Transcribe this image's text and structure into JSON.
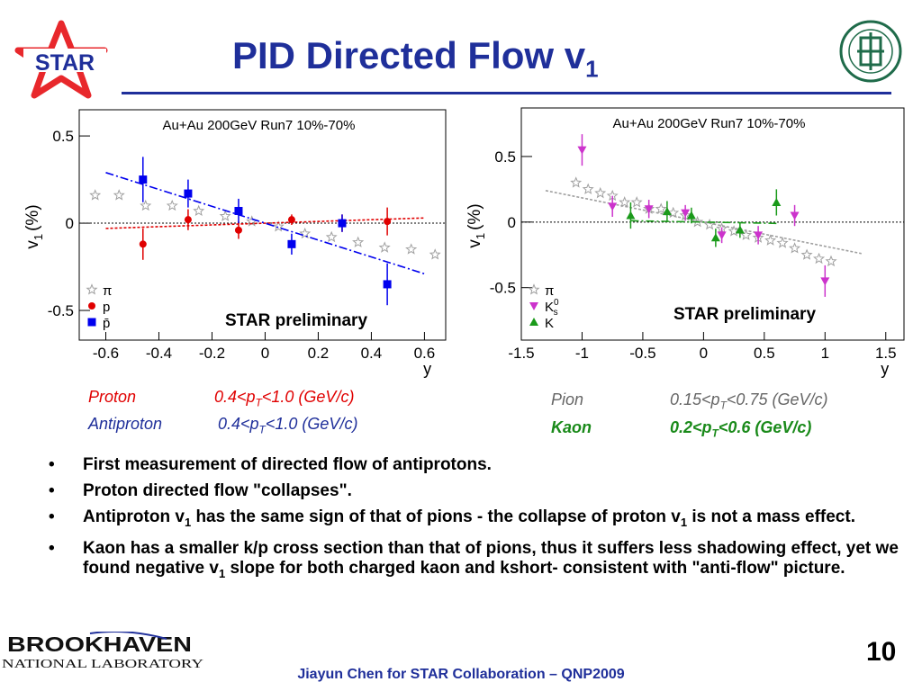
{
  "slide": {
    "title_main": "PID Directed Flow v",
    "title_sub": "1",
    "slide_number": "10",
    "footer": "Jiayun Chen for STAR Collaboration – QNP2009",
    "logos": {
      "star_text": "STAR",
      "bnl_line1": "BROOKHAVEN",
      "bnl_line2": "NATIONAL LABORATORY",
      "star_color": "#e8282c",
      "star_text_color": "#1f2f9a",
      "univ_color": "#1f6b4a"
    }
  },
  "captions": {
    "proton": {
      "label": "Proton",
      "range_pre": "0.4<p",
      "range_sub": "T",
      "range_post": "<1.0 (GeV/c)",
      "color": "#e00000"
    },
    "antiproton": {
      "label": "Antiproton",
      "range_pre": "0.4<p",
      "range_sub": "T",
      "range_post": "<1.0 (GeV/c)",
      "color": "#1f2f9a"
    },
    "pion": {
      "label": "Pion",
      "range_pre": "0.15<p",
      "range_sub": "T",
      "range_post": "<0.75 (GeV/c)",
      "color": "#666666"
    },
    "kaon": {
      "label": "Kaon",
      "range_pre": "0.2<p",
      "range_sub": "T",
      "range_post": "<0.6 (GeV/c)",
      "color": "#1a8a1a"
    }
  },
  "bullets": [
    {
      "parts": [
        "First measurement of directed flow of antiprotons."
      ]
    },
    {
      "parts": [
        "Proton directed flow \"collapses\"."
      ]
    },
    {
      "parts": [
        "Antiproton v",
        "1",
        " has the same sign of that of pions - the collapse of proton v",
        "1",
        " is not a mass effect."
      ]
    },
    {
      "parts": [
        "Kaon has a smaller k/p cross section than that of pions, thus it suffers less shadowing effect, yet we found negative v",
        "1",
        " slope for both charged kaon and kshort- consistent with \"anti-flow\" picture."
      ]
    }
  ],
  "chart_data": [
    {
      "type": "scatter",
      "title": "Au+Au 200GeV Run7 10%-70%",
      "annotation": "STAR preliminary",
      "xlabel": "y",
      "ylabel_main": "v",
      "ylabel_sub": "1",
      "ylabel_unit": "(%)",
      "xlim": [
        -0.7,
        0.68
      ],
      "ylim": [
        -0.67,
        0.65
      ],
      "xticks": [
        -0.6,
        -0.4,
        -0.2,
        0,
        0.2,
        0.4,
        0.6
      ],
      "xticklabels": [
        "-0.6",
        "-0.4",
        "-0.2",
        "0",
        "0.2",
        "0.4",
        "0.6"
      ],
      "yticks": [
        0.5,
        0,
        -0.5
      ],
      "yticklabels": [
        "0.5",
        "0",
        "-0.5"
      ],
      "zero_line": true,
      "legend_position": "bottom-left",
      "series": [
        {
          "name": "π",
          "marker": "open-star",
          "color": "#a0a0a0",
          "x": [
            -0.64,
            -0.55,
            -0.45,
            -0.35,
            -0.25,
            -0.15,
            -0.05,
            0.05,
            0.15,
            0.25,
            0.35,
            0.45,
            0.55,
            0.64
          ],
          "y": [
            0.16,
            0.16,
            0.1,
            0.1,
            0.07,
            0.04,
            0.01,
            -0.02,
            -0.06,
            -0.08,
            -0.11,
            -0.14,
            -0.15,
            -0.18
          ]
        },
        {
          "name": "p",
          "marker": "filled-circle",
          "color": "#e00000",
          "x": [
            -0.46,
            -0.29,
            -0.1,
            0.1,
            0.29,
            0.46
          ],
          "y": [
            -0.12,
            0.02,
            -0.04,
            0.02,
            0.0,
            0.01
          ],
          "err": [
            0.09,
            0.06,
            0.05,
            0.03,
            0.05,
            0.08
          ],
          "fit": {
            "x": [
              -0.6,
              0.6
            ],
            "y": [
              -0.03,
              0.03
            ]
          }
        },
        {
          "name": "p̄",
          "marker": "filled-square",
          "color": "#0000ee",
          "x": [
            -0.46,
            -0.29,
            -0.1,
            0.1,
            0.29,
            0.46
          ],
          "y": [
            0.25,
            0.17,
            0.07,
            -0.12,
            0.0,
            -0.35
          ],
          "err": [
            0.13,
            0.08,
            0.07,
            0.06,
            0.05,
            0.12
          ],
          "fit": {
            "x": [
              -0.6,
              0.6
            ],
            "y": [
              0.29,
              -0.29
            ]
          }
        }
      ]
    },
    {
      "type": "scatter",
      "title": "Au+Au 200GeV Run7 10%-70%",
      "annotation": "STAR preliminary",
      "xlabel": "y",
      "ylabel_main": "v",
      "ylabel_sub": "1",
      "ylabel_unit": "(%)",
      "xlim": [
        -1.5,
        1.65
      ],
      "ylim": [
        -0.9,
        0.87
      ],
      "xticks": [
        -1.5,
        -1,
        -0.5,
        0,
        0.5,
        1,
        1.5
      ],
      "xticklabels": [
        "-1.5",
        "-1",
        "-0.5",
        "0",
        "0.5",
        "1",
        "1.5"
      ],
      "yticks": [
        0.5,
        0,
        -0.5
      ],
      "yticklabels": [
        "0.5",
        "0",
        "-0.5"
      ],
      "zero_line": true,
      "legend_position": "bottom-left",
      "series": [
        {
          "name": "π",
          "marker": "open-star",
          "color": "#a0a0a0",
          "x": [
            -1.05,
            -0.95,
            -0.85,
            -0.75,
            -0.65,
            -0.55,
            -0.45,
            -0.35,
            -0.25,
            -0.15,
            -0.05,
            0.05,
            0.15,
            0.25,
            0.35,
            0.45,
            0.55,
            0.65,
            0.75,
            0.85,
            0.95,
            1.05
          ],
          "y": [
            0.3,
            0.25,
            0.22,
            0.2,
            0.15,
            0.15,
            0.1,
            0.1,
            0.07,
            0.05,
            0.0,
            -0.02,
            -0.05,
            -0.07,
            -0.1,
            -0.12,
            -0.14,
            -0.16,
            -0.2,
            -0.25,
            -0.28,
            -0.3
          ],
          "fit": {
            "x": [
              -1.3,
              1.3
            ],
            "y": [
              0.24,
              -0.24
            ]
          }
        },
        {
          "name": "K",
          "label_sup": "0",
          "label_sub": "s",
          "marker": "filled-triangle-down",
          "color": "#cc33cc",
          "x": [
            -1.0,
            -0.75,
            -0.45,
            -0.15,
            0.15,
            0.45,
            0.75,
            1.0
          ],
          "y": [
            0.55,
            0.12,
            0.1,
            0.07,
            -0.1,
            -0.1,
            0.05,
            -0.45
          ],
          "err": [
            0.12,
            0.08,
            0.07,
            0.06,
            0.06,
            0.07,
            0.08,
            0.12
          ]
        },
        {
          "name": "K",
          "marker": "filled-triangle-up",
          "color": "#1a9a1a",
          "x": [
            -0.6,
            -0.3,
            -0.1,
            0.1,
            0.3,
            0.6
          ],
          "y": [
            0.05,
            0.08,
            0.05,
            -0.12,
            -0.06,
            0.15
          ],
          "err": [
            0.1,
            0.08,
            0.06,
            0.07,
            0.06,
            0.1
          ],
          "fit": {
            "x": [
              -0.6,
              0.6
            ],
            "y": [
              0.01,
              -0.01
            ]
          }
        }
      ]
    }
  ]
}
